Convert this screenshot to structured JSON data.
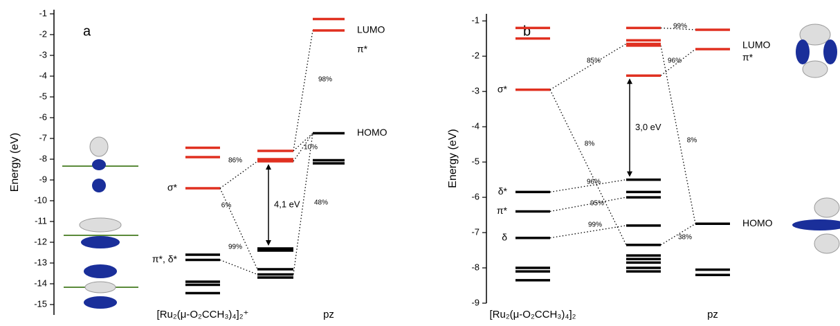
{
  "chart_data": [
    {
      "type": "levels",
      "panel_label": "a",
      "y_label": "Energy  (eV)",
      "ylim": [
        -15.5,
        -0.8
      ],
      "yticks": [
        -1,
        -2,
        -3,
        -4,
        -5,
        -6,
        -7,
        -8,
        -9,
        -10,
        -11,
        -12,
        -13,
        -14,
        -15
      ],
      "columns": [
        {
          "name": "[Ru₂(μ-O₂CCH₃)₄]₂⁺",
          "values": [
            -7.45,
            -7.9,
            -9.4,
            -12.6,
            -12.85,
            -13.9,
            -14.05,
            -14.45
          ],
          "colors": [
            "#e03020",
            "#e03020",
            "#e03020",
            "#000000",
            "#000000",
            "#000000",
            "#000000",
            "#000000"
          ]
        },
        {
          "values": [
            -7.6,
            -8.0,
            -8.1,
            -12.3,
            -12.4,
            -13.3,
            -13.55,
            -13.7
          ],
          "colors": [
            "#e03020",
            "#e03020",
            "#e03020",
            "#000000",
            "#000000",
            "#000000",
            "#000000",
            "#000000"
          ]
        },
        {
          "name": "pz",
          "values": [
            -1.25,
            -1.8,
            -6.75,
            -8.05,
            -8.2
          ],
          "colors": [
            "#e03020",
            "#e03020",
            "#000000",
            "#000000",
            "#000000"
          ]
        }
      ],
      "level_labels": [
        "σ*",
        "π*, δ*",
        "LUMO",
        "π*",
        "HOMO"
      ],
      "annotations": [
        "86%",
        "6%",
        "99%",
        "10%",
        "48%",
        "98%"
      ],
      "gap_label": "4,1 eV"
    },
    {
      "type": "levels",
      "panel_label": "b",
      "y_label": "Energy  (eV)",
      "ylim": [
        -9,
        -0.8
      ],
      "yticks": [
        -1,
        -2,
        -3,
        -4,
        -5,
        -6,
        -7,
        -8,
        -9
      ],
      "columns": [
        {
          "name": "[Ru₂(μ-O₂CCH₃)₄]₂",
          "values": [
            -1.2,
            -1.5,
            -2.95,
            -5.85,
            -6.4,
            -7.15,
            -8.0,
            -8.1,
            -8.35
          ],
          "colors": [
            "#e03020",
            "#e03020",
            "#e03020",
            "#000000",
            "#000000",
            "#000000",
            "#000000",
            "#000000",
            "#000000"
          ]
        },
        {
          "values": [
            -1.2,
            -1.55,
            -1.65,
            -1.7,
            -2.55,
            -5.5,
            -5.85,
            -6.0,
            -6.8,
            -7.35,
            -7.65,
            -7.75,
            -7.85,
            -8.0,
            -8.1
          ],
          "colors": [
            "#e03020",
            "#e03020",
            "#e03020",
            "#e03020",
            "#e03020",
            "#000000",
            "#000000",
            "#000000",
            "#000000",
            "#000000",
            "#000000",
            "#000000",
            "#000000",
            "#000000",
            "#000000"
          ]
        },
        {
          "name": "pz",
          "values": [
            -1.25,
            -1.8,
            -6.75,
            -8.05,
            -8.2
          ],
          "colors": [
            "#e03020",
            "#e03020",
            "#000000",
            "#000000",
            "#000000"
          ]
        }
      ],
      "level_labels": [
        "σ*",
        "δ*",
        "π*",
        "δ",
        "LUMO",
        "π*",
        "HOMO"
      ],
      "annotations": [
        "99%",
        "85%",
        "96%",
        "8%",
        "8%",
        "96%",
        "95%",
        "99%",
        "38%"
      ],
      "gap_label": "3,0 eV"
    }
  ]
}
